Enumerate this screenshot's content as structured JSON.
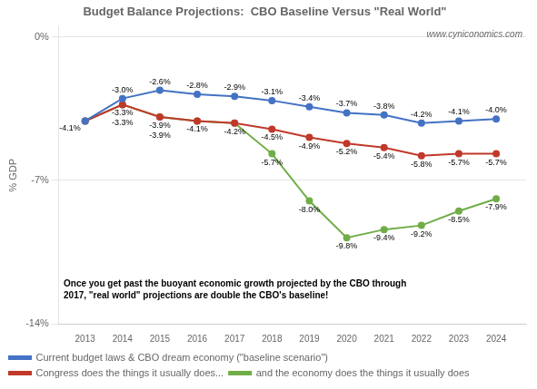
{
  "chart_data": {
    "type": "line",
    "title": "Budget Balance Projections:  CBO Baseline Versus \"Real World\"",
    "x": [
      2013,
      2014,
      2015,
      2016,
      2017,
      2018,
      2019,
      2020,
      2021,
      2022,
      2023,
      2024
    ],
    "xlim": [
      2012.3,
      2024.8
    ],
    "xticks": [
      2013,
      2014,
      2015,
      2016,
      2017,
      2018,
      2019,
      2020,
      2021,
      2022,
      2023,
      2024
    ],
    "ylim": [
      -14,
      0.5
    ],
    "yticks": [
      {
        "value": 0,
        "label": "0%"
      },
      {
        "value": -7,
        "label": "-7%"
      },
      {
        "value": -14,
        "label": "-14%"
      }
    ],
    "ylabel": "% GDP",
    "grid": "y",
    "legend": "bottom",
    "data_labels": true,
    "marker": "circle",
    "series": [
      {
        "name": "Current budget laws & CBO dream economy (\"baseline scenario\")",
        "color": "#4472C4",
        "values": [
          -4.1,
          -3.0,
          -2.6,
          -2.8,
          -2.9,
          -3.1,
          -3.4,
          -3.7,
          -3.8,
          -4.2,
          -4.1,
          -4.0
        ],
        "value_labels": [
          "-4.1%",
          "-3.0%",
          "-2.6%",
          "-2.8%",
          "-2.9%",
          "-3.1%",
          "-3.4%",
          "-3.7%",
          "-3.8%",
          "-4.2%",
          "-4.1%",
          "-4.0%"
        ]
      },
      {
        "name": "Congress does the things it usually does...",
        "color": "#C0392B",
        "values": [
          -4.1,
          -3.3,
          -3.9,
          -4.1,
          -4.2,
          -4.5,
          -4.9,
          -5.2,
          -5.4,
          -5.8,
          -5.7,
          -5.7
        ],
        "value_labels": [
          null,
          "-3.3%",
          "-3.9%",
          "-4.1%",
          "-4.2%",
          "-4.5%",
          "-4.9%",
          "-5.2%",
          "-5.4%",
          "-5.8%",
          "-5.7%",
          "-5.7%"
        ]
      },
      {
        "name": "and the economy does the things it usually does",
        "color": "#70AD47",
        "values": [
          -4.1,
          -3.3,
          -3.9,
          -4.1,
          -4.2,
          -5.7,
          -8.0,
          -9.8,
          -9.4,
          -9.2,
          -8.5,
          -7.9
        ],
        "value_labels": [
          null,
          "-3.3%",
          "-3.9%",
          null,
          null,
          "-5.7%",
          "-8.0%",
          "-9.8%",
          "-9.4%",
          "-9.2%",
          "-8.5%",
          "-7.9%"
        ]
      }
    ],
    "annotation": [
      "Once you get past the buoyant economic growth projected by the CBO through",
      "2017, \"real world\" projections are double the CBO's baseline!"
    ],
    "watermark": "www.cyniconomics.com"
  }
}
